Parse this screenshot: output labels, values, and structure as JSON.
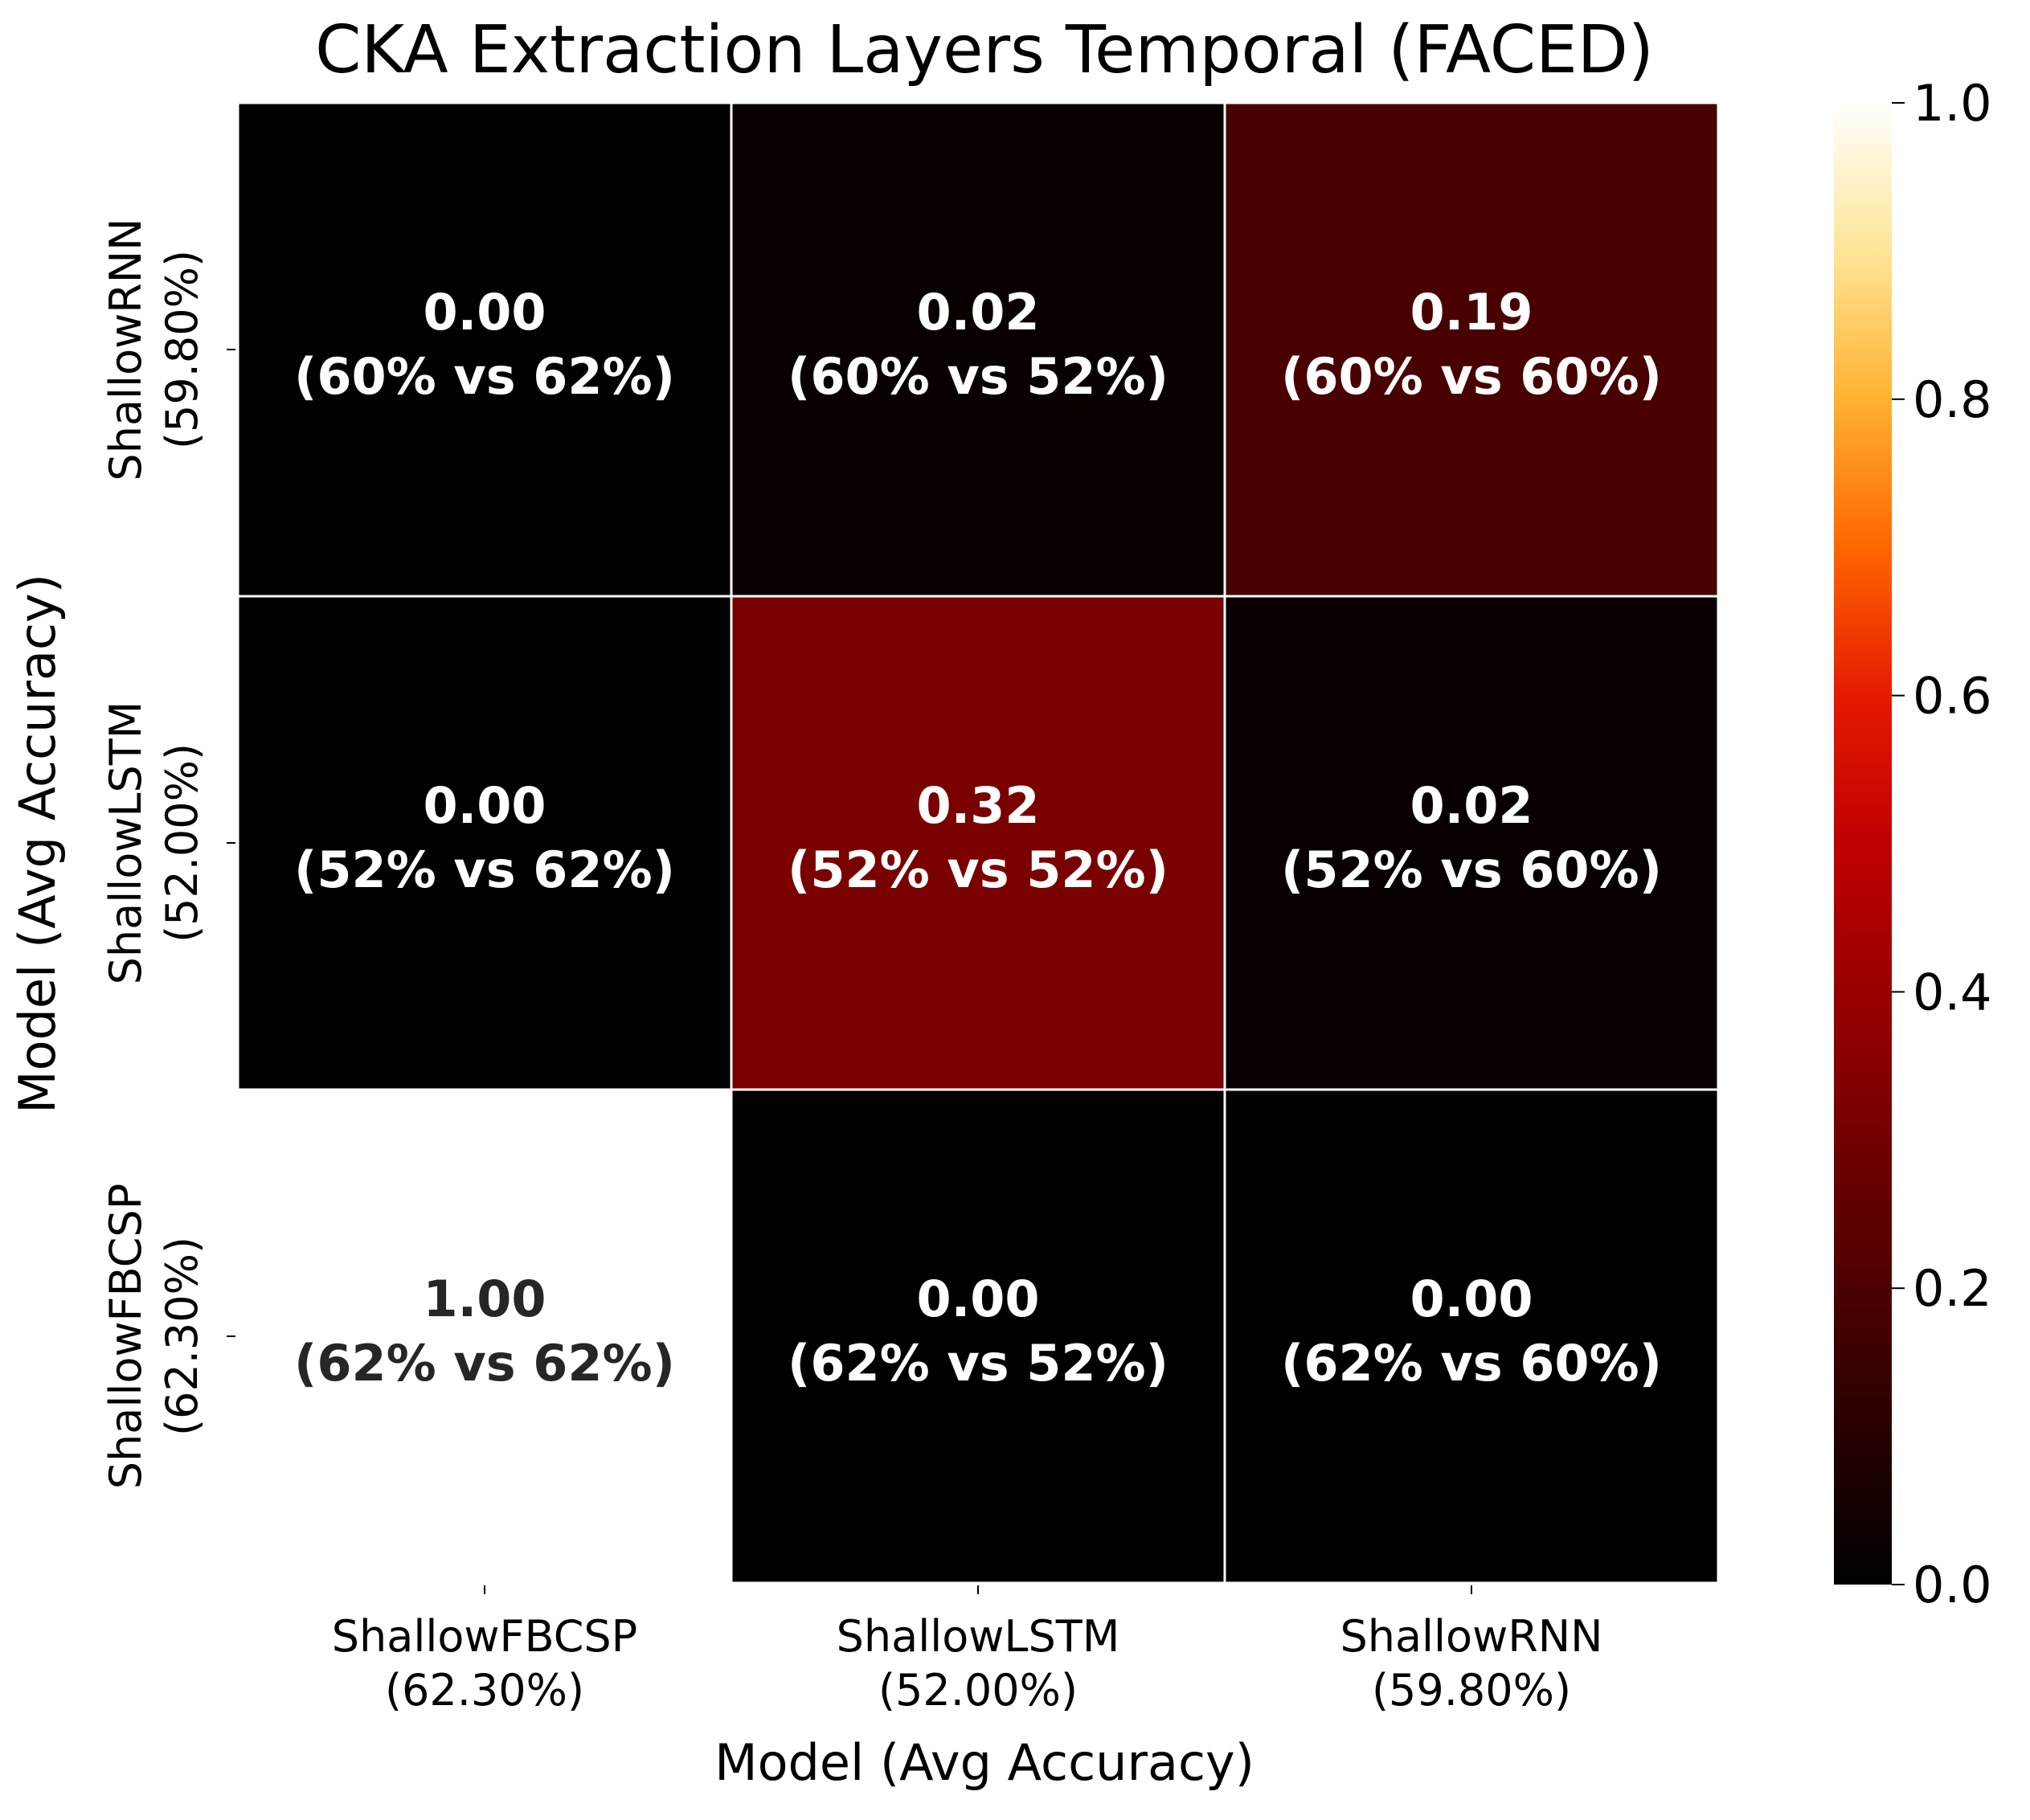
{
  "chart_data": {
    "type": "heatmap",
    "title": "CKA Extraction Layers Temporal (FACED)",
    "xlabel": "Model (Avg Accuracy)",
    "ylabel": "Model (Avg Accuracy)",
    "x_categories": [
      {
        "name": "ShallowFBCSP",
        "acc": "(62.30%)"
      },
      {
        "name": "ShallowLSTM",
        "acc": "(52.00%)"
      },
      {
        "name": "ShallowRNN",
        "acc": "(59.80%)"
      }
    ],
    "y_categories": [
      {
        "name": "ShallowRNN",
        "acc": "(59.80%)"
      },
      {
        "name": "ShallowLSTM",
        "acc": "(52.00%)"
      },
      {
        "name": "ShallowFBCSP",
        "acc": "(62.30%)"
      }
    ],
    "values": [
      [
        0.0,
        0.02,
        0.19
      ],
      [
        0.0,
        0.32,
        0.02
      ],
      [
        1.0,
        0.0,
        0.0
      ]
    ],
    "cell_labels": [
      [
        {
          "value": "0.00",
          "detail": "(60% vs 62%)"
        },
        {
          "value": "0.02",
          "detail": "(60% vs 52%)"
        },
        {
          "value": "0.19",
          "detail": "(60% vs 60%)"
        }
      ],
      [
        {
          "value": "0.00",
          "detail": "(52% vs 62%)"
        },
        {
          "value": "0.32",
          "detail": "(52% vs 52%)"
        },
        {
          "value": "0.02",
          "detail": "(52% vs 60%)"
        }
      ],
      [
        {
          "value": "1.00",
          "detail": "(62% vs 62%)"
        },
        {
          "value": "0.00",
          "detail": "(62% vs 52%)"
        },
        {
          "value": "0.00",
          "detail": "(62% vs 60%)"
        }
      ]
    ],
    "colorbar": {
      "range": [
        0.0,
        1.0
      ],
      "ticks": [
        "0.0",
        "0.2",
        "0.4",
        "0.6",
        "0.8",
        "1.0"
      ],
      "colormap": "gist_heat"
    },
    "grid": false,
    "cell_border_color": "#ffffff"
  }
}
